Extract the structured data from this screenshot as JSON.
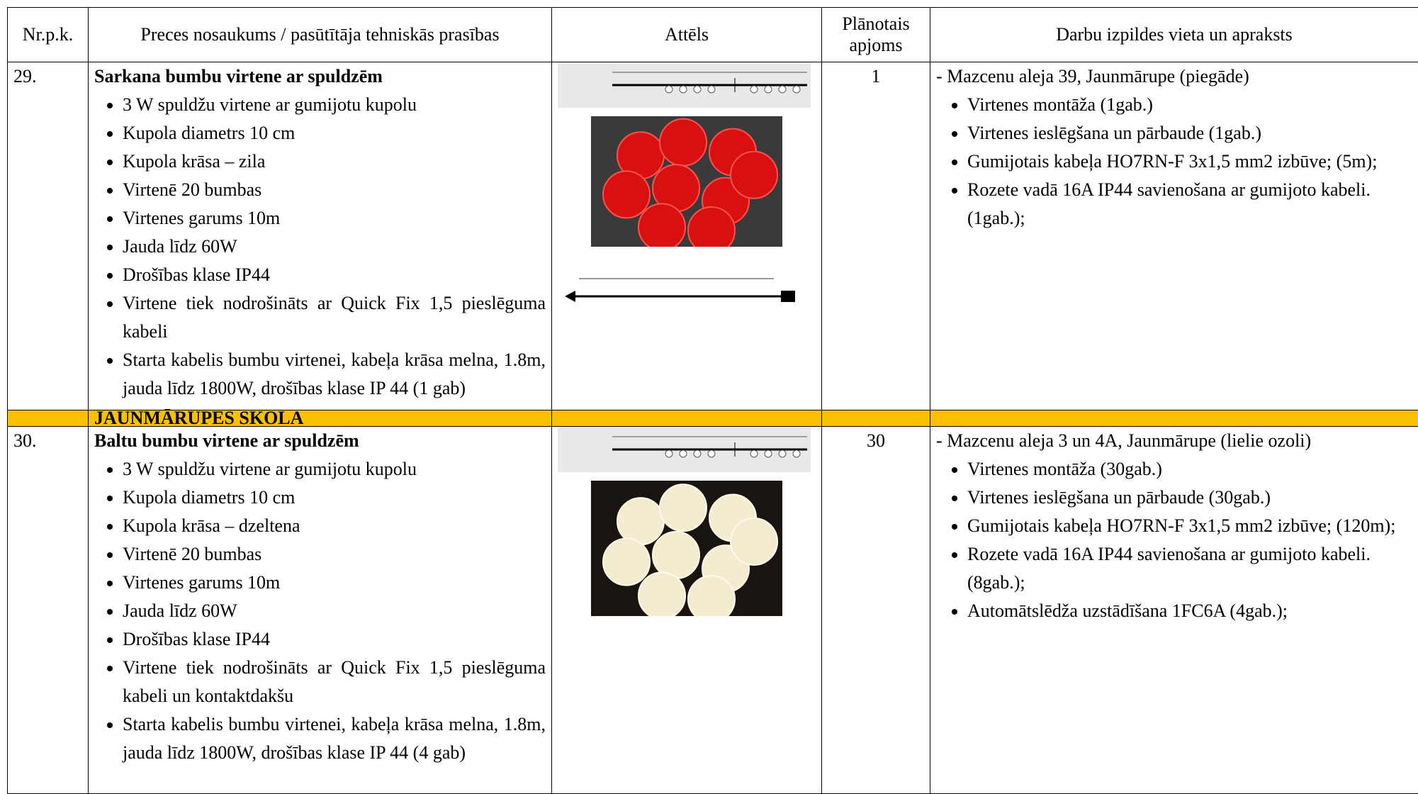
{
  "header": [
    "Nr.p.k.",
    "Preces nosaukums / pasūtītāja tehniskās prasības",
    "Attēls",
    "Plānotais apjoms",
    "Darbu izpildes vieta un apraksts"
  ],
  "rows": [
    {
      "nr": "29.",
      "title": "Sarkana bumbu virtene ar spuldzēm",
      "specs": [
        "3 W spuldžu virtene ar gumijotu kupolu",
        "Kupola diametrs 10 cm",
        "Kupola krāsa – zila",
        "Virtenē 20 bumbas",
        "Virtenes garums 10m",
        "Jauda līdz 60W",
        "Drošības klase IP44",
        "Virtene tiek nodrošināts ar Quick Fix 1,5 pieslēguma kabeli",
        "Starta kabelis bumbu virtenei, kabeļa krāsa melna, 1.8m, jauda līdz 1800W, drošības klase IP 44 (1 gab)"
      ],
      "qty": "1",
      "location": "- Mazcenu aleja 39, Jaunmārupe (piegāde)",
      "tasks": [
        "Virtenes montāža (1gab.)",
        "Virtenes ieslēgšana un pārbaude (1gab.)",
        "Gumijotais kabeļa HO7RN-F 3x1,5 mm2 izbūve; (5m);",
        "Rozete vadā 16A IP44 savienošana ar gumijoto kabeli. (1gab.);"
      ]
    },
    {
      "section": "JAUNMĀRUPES SKOLA"
    },
    {
      "nr": "30.",
      "title": "Baltu bumbu virtene ar spuldzēm",
      "specs": [
        "3 W spuldžu virtene ar gumijotu kupolu",
        "Kupola diametrs 10 cm",
        "Kupola krāsa – dzeltena",
        "Virtenē 20 bumbas",
        "Virtenes garums 10m",
        "Jauda līdz 60W",
        "Drošības klase IP44",
        "Virtene tiek nodrošināts ar Quick Fix 1,5 pieslēguma kabeli un kontaktdakšu",
        "Starta kabelis bumbu virtenei, kabeļa krāsa melna, 1.8m, jauda līdz 1800W, drošības klase IP 44 (4 gab)"
      ],
      "qty": "30",
      "location": "- Mazcenu aleja 3 un 4A, Jaunmārupe (lielie ozoli)",
      "tasks": [
        "Virtenes montāža (30gab.)",
        "Virtenes ieslēgšana un pārbaude (30gab.)",
        "Gumijotais kabeļa HO7RN-F 3x1,5 mm2 izbūve; (120m);",
        "Rozete vadā 16A IP44 savienošana ar gumijoto kabeli. (8gab.);",
        "Automātslēdža uzstādīšana 1FC6A (4gab.);"
      ]
    }
  ]
}
